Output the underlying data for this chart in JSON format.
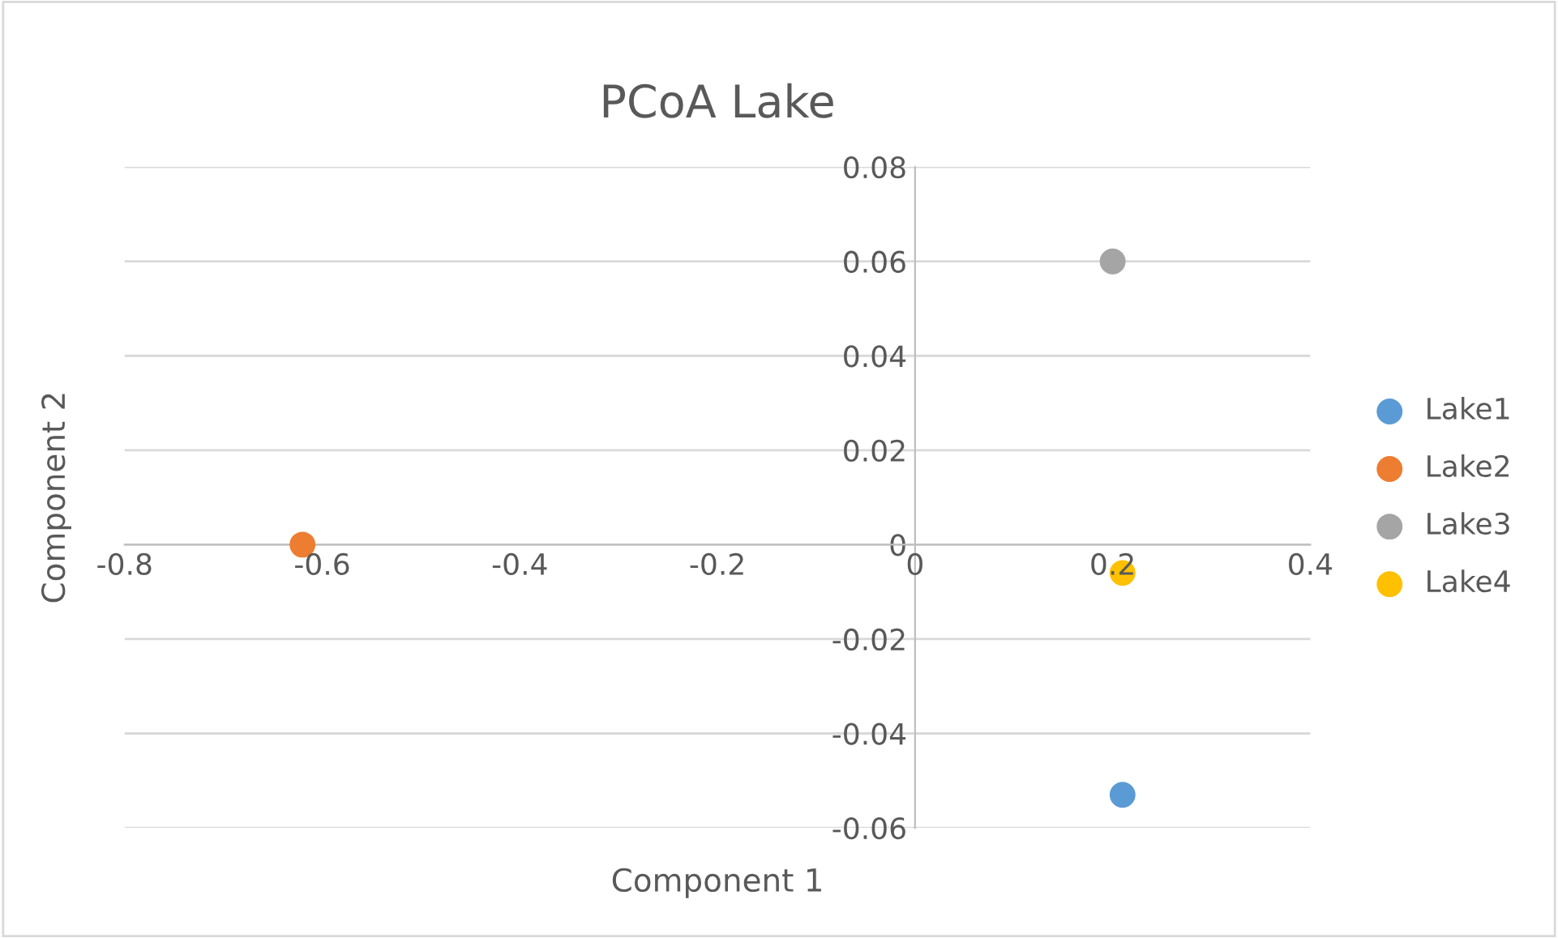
{
  "chart_data": {
    "type": "scatter",
    "title": "PCoA Lake",
    "xlabel": "Component 1",
    "ylabel": "Component 2",
    "series": [
      {
        "name": "Lake1",
        "color": "#5b9bd5",
        "x": [
          0.21
        ],
        "values": [
          -0.053
        ]
      },
      {
        "name": "Lake2",
        "color": "#ed7d31",
        "x": [
          -0.62
        ],
        "values": [
          0.0
        ]
      },
      {
        "name": "Lake3",
        "color": "#a5a5a5",
        "x": [
          0.2
        ],
        "values": [
          0.06
        ]
      },
      {
        "name": "Lake4",
        "color": "#ffc000",
        "x": [
          0.21
        ],
        "values": [
          -0.006
        ]
      }
    ],
    "xlim": [
      -0.8,
      0.4
    ],
    "xticks": [
      -0.8,
      -0.6,
      -0.4,
      -0.2,
      0,
      0.2,
      0.4
    ],
    "ylim": [
      -0.06,
      0.08
    ],
    "yticks": [
      -0.06,
      -0.04,
      -0.02,
      0,
      0.02,
      0.04,
      0.06,
      0.08
    ],
    "grid": "y",
    "legend": "right",
    "marker": "circle"
  }
}
